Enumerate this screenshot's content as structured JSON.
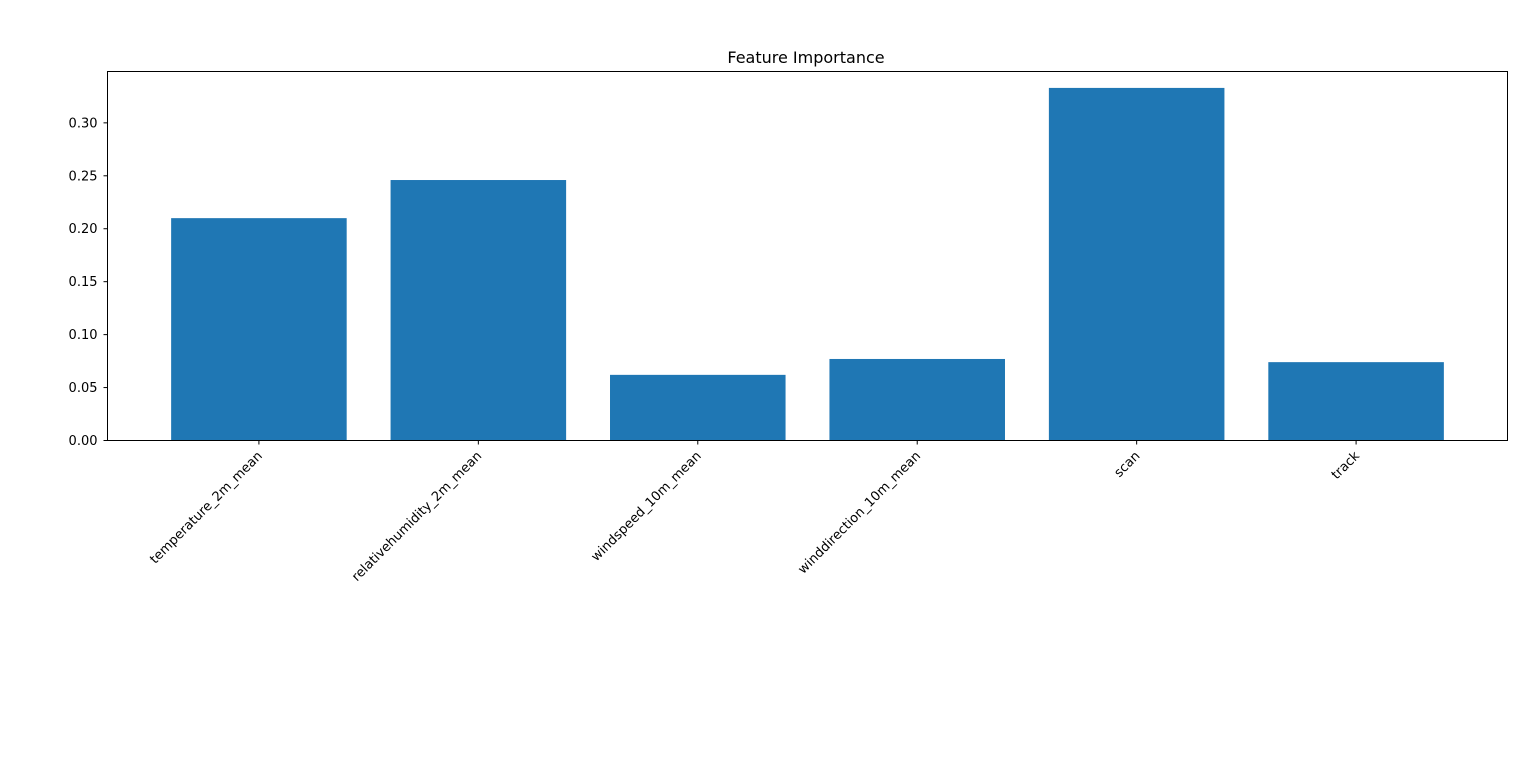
{
  "chart_data": {
    "type": "bar",
    "title": "Feature Importance",
    "xlabel": "",
    "ylabel": "",
    "categories": [
      "temperature_2m_mean",
      "relativehumidity_2m_mean",
      "windspeed_10m_mean",
      "winddirection_10m_mean",
      "scan",
      "track"
    ],
    "values": [
      0.21,
      0.246,
      0.062,
      0.077,
      0.333,
      0.074
    ],
    "ylim": [
      0,
      0.3485
    ],
    "yticks": [
      0.0,
      0.05,
      0.1,
      0.15,
      0.2,
      0.25,
      0.3
    ],
    "ytick_labels": [
      "0.00",
      "0.05",
      "0.10",
      "0.15",
      "0.20",
      "0.25",
      "0.30"
    ],
    "grid": false,
    "bar_color": "#1f77b4",
    "xtick_rotation_deg": 45
  }
}
